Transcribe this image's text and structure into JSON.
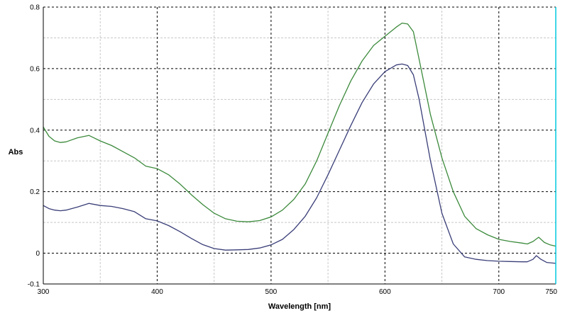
{
  "chart_data": {
    "type": "line",
    "title": "",
    "xlabel": "Wavelength [nm]",
    "ylabel": "Abs",
    "xlim": [
      300,
      750
    ],
    "ylim": [
      -0.1,
      0.8
    ],
    "x_ticks": [
      "300",
      "400",
      "500",
      "600",
      "700",
      "750"
    ],
    "y_ticks": [
      "-0.1",
      "0",
      "0.2",
      "0.4",
      "0.6",
      "0.8"
    ],
    "grid": true,
    "legend": "none",
    "series": [
      {
        "color": "#3c8a3c",
        "points": [
          [
            300,
            0.41
          ],
          [
            305,
            0.38
          ],
          [
            310,
            0.365
          ],
          [
            315,
            0.36
          ],
          [
            320,
            0.362
          ],
          [
            330,
            0.375
          ],
          [
            340,
            0.383
          ],
          [
            350,
            0.365
          ],
          [
            360,
            0.35
          ],
          [
            370,
            0.33
          ],
          [
            380,
            0.31
          ],
          [
            390,
            0.283
          ],
          [
            400,
            0.275
          ],
          [
            410,
            0.255
          ],
          [
            420,
            0.225
          ],
          [
            430,
            0.19
          ],
          [
            440,
            0.158
          ],
          [
            450,
            0.13
          ],
          [
            460,
            0.112
          ],
          [
            470,
            0.104
          ],
          [
            480,
            0.102
          ],
          [
            490,
            0.106
          ],
          [
            500,
            0.118
          ],
          [
            510,
            0.14
          ],
          [
            520,
            0.175
          ],
          [
            530,
            0.225
          ],
          [
            540,
            0.3
          ],
          [
            550,
            0.39
          ],
          [
            560,
            0.48
          ],
          [
            570,
            0.56
          ],
          [
            580,
            0.625
          ],
          [
            590,
            0.675
          ],
          [
            600,
            0.705
          ],
          [
            610,
            0.735
          ],
          [
            615,
            0.748
          ],
          [
            620,
            0.745
          ],
          [
            625,
            0.72
          ],
          [
            630,
            0.63
          ],
          [
            640,
            0.45
          ],
          [
            650,
            0.31
          ],
          [
            660,
            0.2
          ],
          [
            670,
            0.12
          ],
          [
            680,
            0.08
          ],
          [
            690,
            0.06
          ],
          [
            700,
            0.045
          ],
          [
            710,
            0.038
          ],
          [
            720,
            0.033
          ],
          [
            725,
            0.03
          ],
          [
            730,
            0.038
          ],
          [
            735,
            0.052
          ],
          [
            740,
            0.035
          ],
          [
            745,
            0.027
          ],
          [
            750,
            0.023
          ]
        ]
      },
      {
        "color": "#3a3e78",
        "points": [
          [
            300,
            0.155
          ],
          [
            305,
            0.145
          ],
          [
            310,
            0.14
          ],
          [
            315,
            0.138
          ],
          [
            320,
            0.14
          ],
          [
            330,
            0.15
          ],
          [
            340,
            0.162
          ],
          [
            350,
            0.155
          ],
          [
            360,
            0.152
          ],
          [
            370,
            0.145
          ],
          [
            380,
            0.135
          ],
          [
            390,
            0.112
          ],
          [
            400,
            0.105
          ],
          [
            410,
            0.09
          ],
          [
            420,
            0.07
          ],
          [
            430,
            0.048
          ],
          [
            440,
            0.028
          ],
          [
            450,
            0.015
          ],
          [
            460,
            0.01
          ],
          [
            470,
            0.011
          ],
          [
            480,
            0.012
          ],
          [
            490,
            0.017
          ],
          [
            500,
            0.027
          ],
          [
            510,
            0.045
          ],
          [
            520,
            0.077
          ],
          [
            530,
            0.12
          ],
          [
            540,
            0.18
          ],
          [
            550,
            0.255
          ],
          [
            560,
            0.335
          ],
          [
            570,
            0.415
          ],
          [
            580,
            0.49
          ],
          [
            590,
            0.55
          ],
          [
            600,
            0.59
          ],
          [
            610,
            0.612
          ],
          [
            615,
            0.615
          ],
          [
            620,
            0.61
          ],
          [
            625,
            0.58
          ],
          [
            630,
            0.5
          ],
          [
            640,
            0.3
          ],
          [
            650,
            0.13
          ],
          [
            660,
            0.03
          ],
          [
            670,
            -0.012
          ],
          [
            680,
            -0.02
          ],
          [
            690,
            -0.024
          ],
          [
            700,
            -0.026
          ],
          [
            710,
            -0.027
          ],
          [
            720,
            -0.028
          ],
          [
            725,
            -0.028
          ],
          [
            730,
            -0.02
          ],
          [
            733,
            -0.008
          ],
          [
            737,
            -0.02
          ],
          [
            742,
            -0.03
          ],
          [
            750,
            -0.033
          ]
        ]
      }
    ]
  }
}
